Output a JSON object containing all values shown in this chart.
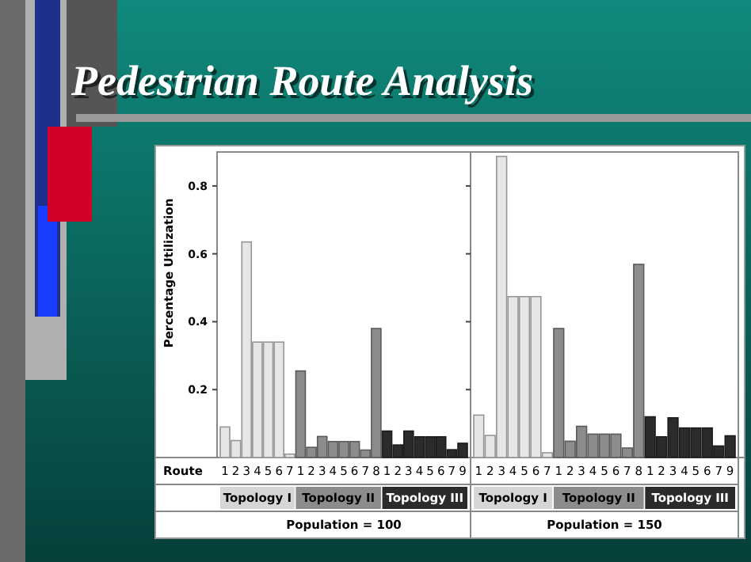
{
  "chart_data": [
    {
      "type": "bar",
      "title": "Pedestrian Route Analysis",
      "ylabel": "Percentage Utilization",
      "xlabel": "Population = 100",
      "annotations": [
        "Route"
      ],
      "categories": [
        "1",
        "2",
        "3",
        "4",
        "5",
        "6",
        "7",
        "1",
        "2",
        "3",
        "4",
        "5",
        "6",
        "7",
        "8",
        "1",
        "2",
        "3",
        "4",
        "5",
        "6",
        "7",
        "9"
      ],
      "series": [
        {
          "name": "Topology I",
          "color": "#e6e6e6",
          "values": [
            0.09,
            0.05,
            0.635,
            0.34,
            0.34,
            0.34,
            0.01,
            null,
            null,
            null,
            null,
            null,
            null,
            null,
            null,
            null,
            null,
            null,
            null,
            null,
            null,
            null,
            null
          ]
        },
        {
          "name": "Topology II",
          "color": "#8c8c8c",
          "values": [
            null,
            null,
            null,
            null,
            null,
            null,
            null,
            0.255,
            0.03,
            0.062,
            0.047,
            0.047,
            0.047,
            0.022,
            0.38,
            null,
            null,
            null,
            null,
            null,
            null,
            null,
            null
          ]
        },
        {
          "name": "Topology III",
          "color": "#2b2b2b",
          "values": [
            null,
            null,
            null,
            null,
            null,
            null,
            null,
            null,
            null,
            null,
            null,
            null,
            null,
            null,
            null,
            0.078,
            0.037,
            0.078,
            0.061,
            0.061,
            0.061,
            0.023,
            0.042
          ]
        }
      ],
      "ylim": [
        0,
        0.9
      ],
      "yticks": [
        0.2,
        0.4,
        0.6,
        0.8
      ],
      "grid": false,
      "legend": "bottom"
    },
    {
      "type": "bar",
      "xlabel": "Population = 150",
      "categories": [
        "1",
        "2",
        "3",
        "4",
        "5",
        "6",
        "7",
        "1",
        "2",
        "3",
        "4",
        "5",
        "6",
        "7",
        "8",
        "1",
        "2",
        "3",
        "4",
        "5",
        "6",
        "7",
        "9"
      ],
      "series": [
        {
          "name": "Topology I",
          "color": "#e6e6e6",
          "values": [
            0.125,
            0.065,
            0.887,
            0.474,
            0.474,
            0.474,
            0.014,
            null,
            null,
            null,
            null,
            null,
            null,
            null,
            null,
            null,
            null,
            null,
            null,
            null,
            null,
            null,
            null
          ]
        },
        {
          "name": "Topology II",
          "color": "#8c8c8c",
          "values": [
            null,
            null,
            null,
            null,
            null,
            null,
            null,
            0.38,
            0.048,
            0.092,
            0.069,
            0.069,
            0.069,
            0.028,
            0.569,
            null,
            null,
            null,
            null,
            null,
            null,
            null,
            null
          ]
        },
        {
          "name": "Topology III",
          "color": "#2b2b2b",
          "values": [
            null,
            null,
            null,
            null,
            null,
            null,
            null,
            null,
            null,
            null,
            null,
            null,
            null,
            null,
            null,
            0.12,
            0.061,
            0.117,
            0.087,
            0.087,
            0.087,
            0.034,
            0.064
          ]
        }
      ],
      "ylim": [
        0,
        0.9
      ],
      "yticks": [
        0.2,
        0.4,
        0.6,
        0.8
      ],
      "grid": false,
      "legend": "bottom",
      "tick_labels": "x"
    }
  ]
}
